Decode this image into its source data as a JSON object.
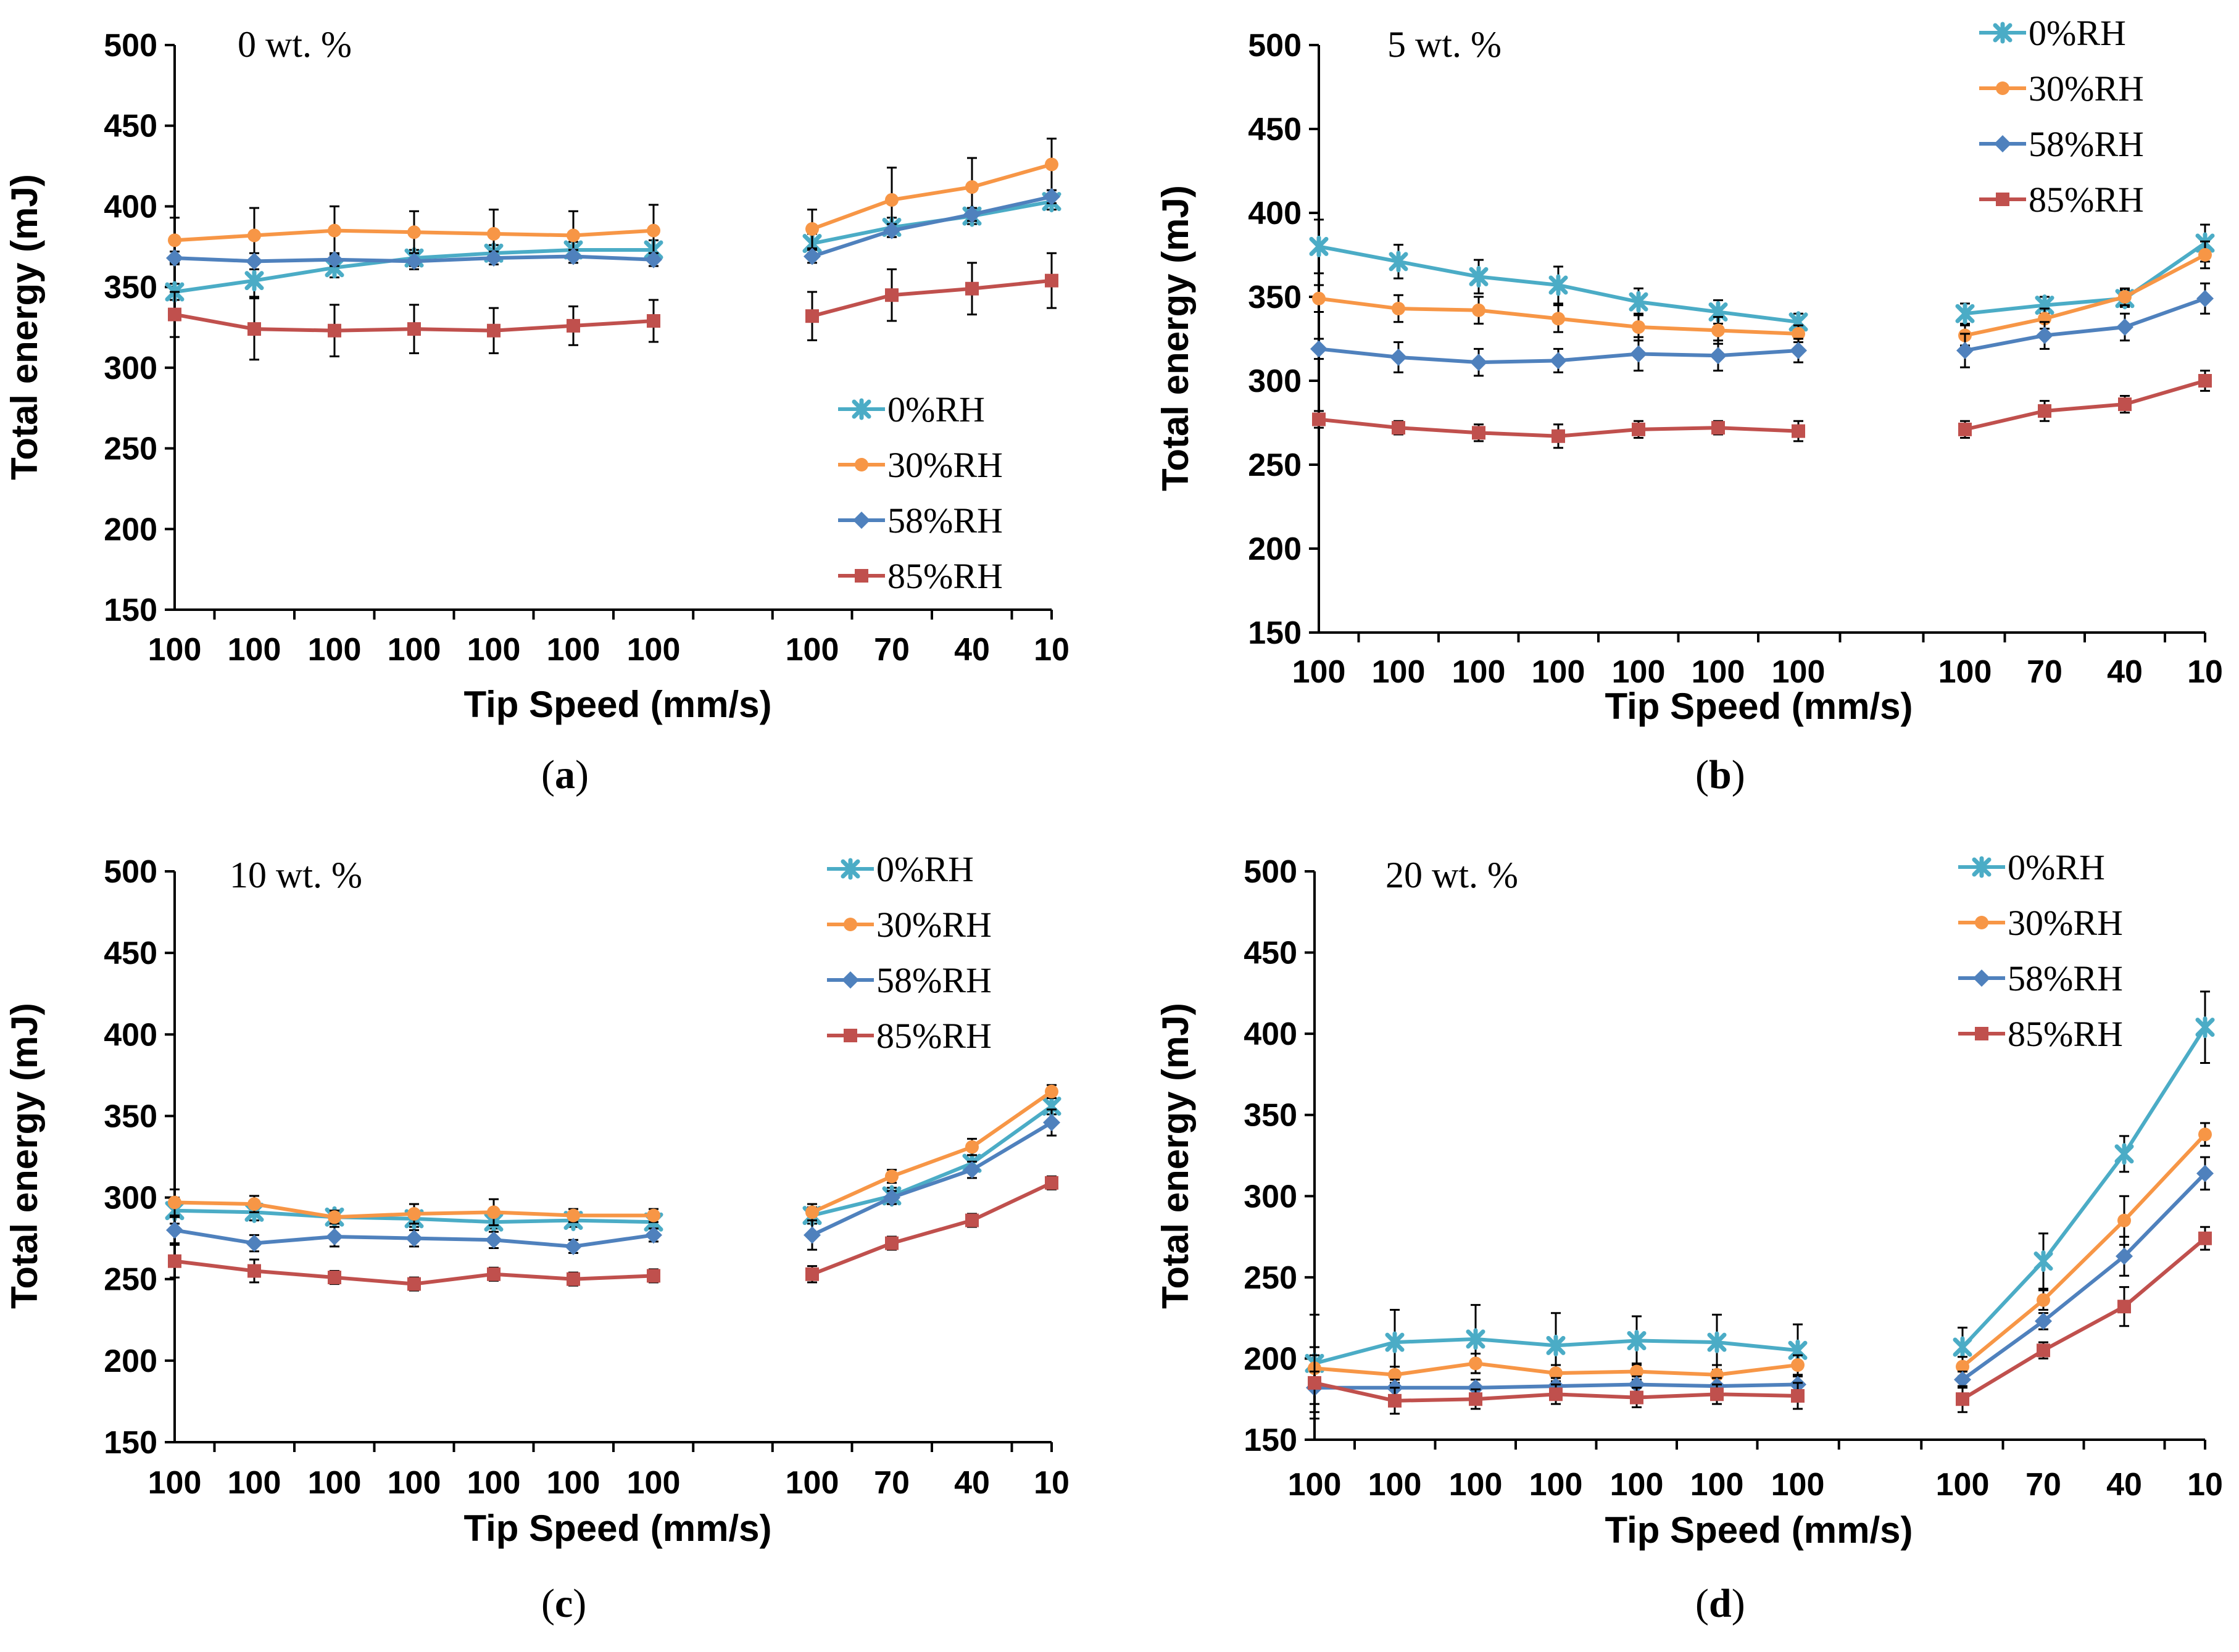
{
  "chart_data": [
    {
      "type": "line",
      "panel_label": "a",
      "annotation": "0 wt. %",
      "xlabel": "Tip Speed (mm/s)",
      "ylabel": "Total energy (mJ)",
      "ylim": [
        150,
        500
      ],
      "yticks": [
        150,
        200,
        250,
        300,
        350,
        400,
        450,
        500
      ],
      "categories": [
        "100",
        "100",
        "100",
        "100",
        "100",
        "100",
        "100",
        "100",
        "70",
        "40",
        "10"
      ],
      "legend_position": "right-middle",
      "series": [
        {
          "name": "0%RH",
          "color": "#4BACC6",
          "marker": "star",
          "values": [
            347,
            354,
            362,
            368,
            371,
            373,
            373,
            377,
            387,
            394,
            403
          ],
          "errors": [
            5,
            10,
            6,
            5,
            5,
            5,
            6,
            6,
            6,
            5,
            5
          ]
        },
        {
          "name": "30%RH",
          "color": "#F79646",
          "marker": "circle",
          "values": [
            379,
            382,
            385,
            384,
            383,
            382,
            385,
            386,
            404,
            412,
            426
          ],
          "errors": [
            14,
            17,
            15,
            13,
            15,
            15,
            16,
            12,
            20,
            18,
            16
          ]
        },
        {
          "name": "58%RH",
          "color": "#4F81BD",
          "marker": "diamond",
          "values": [
            368,
            366,
            367,
            366,
            368,
            369,
            367,
            369,
            385,
            395,
            406
          ],
          "errors": [
            4,
            5,
            4,
            5,
            4,
            4,
            4,
            4,
            4,
            4,
            4
          ]
        },
        {
          "name": "85%RH",
          "color": "#C0504D",
          "marker": "square",
          "values": [
            333,
            324,
            323,
            324,
            323,
            326,
            329,
            332,
            345,
            349,
            354
          ],
          "errors": [
            14,
            19,
            16,
            15,
            14,
            12,
            13,
            15,
            16,
            16,
            17
          ]
        }
      ]
    },
    {
      "type": "line",
      "panel_label": "b",
      "annotation": "5 wt. %",
      "xlabel": "Tip Speed (mm/s)",
      "ylabel": "Total energy (mJ)",
      "ylim": [
        150,
        500
      ],
      "yticks": [
        150,
        200,
        250,
        300,
        350,
        400,
        450,
        500
      ],
      "categories": [
        "100",
        "100",
        "100",
        "100",
        "100",
        "100",
        "100",
        "100",
        "70",
        "40",
        "10"
      ],
      "legend_position": "top-right",
      "series": [
        {
          "name": "0%RH",
          "color": "#4BACC6",
          "marker": "star",
          "values": [
            380,
            371,
            362,
            357,
            347,
            341,
            335,
            340,
            345,
            349,
            382
          ],
          "errors": [
            16,
            10,
            10,
            11,
            8,
            7,
            5,
            6,
            5,
            5,
            11
          ]
        },
        {
          "name": "30%RH",
          "color": "#F79646",
          "marker": "circle",
          "values": [
            349,
            343,
            342,
            337,
            332,
            330,
            328,
            327,
            337,
            350,
            375
          ],
          "errors": [
            8,
            8,
            8,
            8,
            8,
            8,
            5,
            6,
            6,
            5,
            8
          ]
        },
        {
          "name": "58%RH",
          "color": "#4F81BD",
          "marker": "diamond",
          "values": [
            319,
            314,
            311,
            312,
            316,
            315,
            318,
            318,
            327,
            332,
            349
          ],
          "errors": [
            6,
            9,
            8,
            7,
            10,
            9,
            7,
            10,
            8,
            8,
            9
          ]
        },
        {
          "name": "85%RH",
          "color": "#C0504D",
          "marker": "square",
          "values": [
            277,
            272,
            269,
            267,
            271,
            272,
            270,
            271,
            282,
            286,
            300
          ],
          "errors": [
            5,
            4,
            5,
            7,
            5,
            4,
            6,
            5,
            6,
            5,
            6
          ]
        }
      ]
    },
    {
      "type": "line",
      "panel_label": "c",
      "annotation": "10 wt. %",
      "xlabel": "Tip Speed (mm/s)",
      "ylabel": "Total energy (mJ)",
      "ylim": [
        150,
        500
      ],
      "yticks": [
        150,
        200,
        250,
        300,
        350,
        400,
        450,
        500
      ],
      "categories": [
        "100",
        "100",
        "100",
        "100",
        "100",
        "100",
        "100",
        "100",
        "70",
        "40",
        "10"
      ],
      "legend_position": "top-right",
      "series": [
        {
          "name": "0%RH",
          "color": "#4BACC6",
          "marker": "star",
          "values": [
            292,
            291,
            288,
            287,
            285,
            286,
            285,
            289,
            301,
            321,
            356
          ],
          "errors": [
            8,
            5,
            4,
            5,
            4,
            4,
            4,
            5,
            5,
            5,
            5
          ]
        },
        {
          "name": "30%RH",
          "color": "#F79646",
          "marker": "circle",
          "values": [
            297,
            296,
            288,
            290,
            291,
            289,
            289,
            291,
            313,
            331,
            365
          ],
          "errors": [
            8,
            5,
            4,
            6,
            8,
            4,
            4,
            5,
            4,
            5,
            4
          ]
        },
        {
          "name": "58%RH",
          "color": "#4F81BD",
          "marker": "diamond",
          "values": [
            280,
            272,
            276,
            275,
            274,
            270,
            277,
            277,
            300,
            317,
            346
          ],
          "errors": [
            8,
            5,
            6,
            5,
            5,
            4,
            4,
            9,
            4,
            5,
            8
          ]
        },
        {
          "name": "85%RH",
          "color": "#C0504D",
          "marker": "square",
          "values": [
            261,
            255,
            251,
            247,
            253,
            250,
            252,
            253,
            272,
            286,
            309
          ],
          "errors": [
            10,
            7,
            4,
            4,
            4,
            4,
            4,
            5,
            4,
            4,
            4
          ]
        }
      ]
    },
    {
      "type": "line",
      "panel_label": "d",
      "annotation": "20 wt. %",
      "xlabel": "Tip Speed (mm/s)",
      "ylabel": "Total energy (mJ)",
      "ylim": [
        150,
        500
      ],
      "yticks": [
        150,
        200,
        250,
        300,
        350,
        400,
        450,
        500
      ],
      "categories": [
        "100",
        "100",
        "100",
        "100",
        "100",
        "100",
        "100",
        "100",
        "70",
        "40",
        "10"
      ],
      "legend_position": "top-right",
      "series": [
        {
          "name": "0%RH",
          "color": "#4BACC6",
          "marker": "star",
          "values": [
            197,
            210,
            212,
            208,
            211,
            210,
            205,
            207,
            260,
            326,
            404
          ],
          "errors": [
            30,
            20,
            21,
            20,
            15,
            17,
            16,
            12,
            17,
            11,
            22
          ]
        },
        {
          "name": "30%RH",
          "color": "#F79646",
          "marker": "circle",
          "values": [
            194,
            190,
            197,
            191,
            192,
            190,
            196,
            195,
            236,
            285,
            338
          ],
          "errors": [
            8,
            5,
            6,
            5,
            5,
            6,
            6,
            6,
            6,
            15,
            7
          ]
        },
        {
          "name": "58%RH",
          "color": "#4F81BD",
          "marker": "diamond",
          "values": [
            182,
            182,
            182,
            183,
            184,
            183,
            184,
            187,
            223,
            263,
            314
          ],
          "errors": [
            10,
            5,
            5,
            5,
            5,
            5,
            5,
            5,
            5,
            12,
            10
          ]
        },
        {
          "name": "85%RH",
          "color": "#C0504D",
          "marker": "square",
          "values": [
            185,
            174,
            175,
            178,
            176,
            178,
            177,
            175,
            205,
            232,
            274
          ],
          "errors": [
            22,
            8,
            6,
            6,
            6,
            6,
            8,
            8,
            5,
            12,
            7
          ]
        }
      ]
    }
  ]
}
